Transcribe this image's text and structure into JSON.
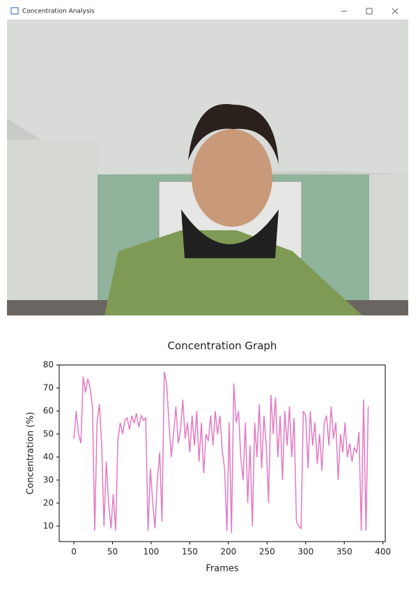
{
  "window": {
    "title": "Concentration Analysis"
  },
  "chart_data": {
    "type": "line",
    "title": "Concentration Graph",
    "x_label": "Frames",
    "y_label": "Concentration (%)",
    "x": [
      0,
      3,
      6,
      9,
      12,
      15,
      18,
      21,
      24,
      27,
      30,
      33,
      36,
      39,
      42,
      45,
      48,
      51,
      54,
      57,
      60,
      63,
      66,
      69,
      72,
      75,
      78,
      81,
      84,
      87,
      90,
      93,
      96,
      99,
      102,
      105,
      108,
      111,
      114,
      117,
      120,
      123,
      126,
      129,
      132,
      135,
      138,
      141,
      144,
      147,
      150,
      153,
      156,
      159,
      162,
      165,
      168,
      171,
      174,
      177,
      180,
      183,
      186,
      189,
      192,
      195,
      198,
      201,
      204,
      207,
      210,
      213,
      216,
      219,
      222,
      225,
      228,
      231,
      234,
      237,
      240,
      243,
      246,
      249,
      252,
      255,
      258,
      261,
      264,
      267,
      270,
      273,
      276,
      279,
      282,
      285,
      288,
      291,
      294,
      297,
      300,
      303,
      306,
      309,
      312,
      315,
      318,
      321,
      324,
      327,
      330,
      333,
      336,
      339,
      342,
      345,
      348,
      351,
      354,
      357,
      360,
      363,
      366,
      369,
      372,
      375,
      378,
      381
    ],
    "series": [
      {
        "name": "Concentration",
        "color": "#e377c2",
        "values": [
          48,
          60,
          50,
          46,
          75,
          68,
          74,
          70,
          62,
          8,
          55,
          63,
          45,
          10,
          38,
          20,
          9,
          24,
          8,
          48,
          55,
          50,
          56,
          57,
          52,
          58,
          55,
          59,
          53,
          58,
          56,
          57,
          8,
          35,
          20,
          9,
          30,
          42,
          12,
          77,
          72,
          55,
          40,
          50,
          62,
          46,
          52,
          65,
          48,
          55,
          42,
          58,
          45,
          60,
          38,
          55,
          33,
          50,
          47,
          58,
          45,
          60,
          50,
          58,
          43,
          35,
          8,
          55,
          7,
          72,
          55,
          60,
          40,
          30,
          55,
          20,
          45,
          10,
          55,
          40,
          63,
          35,
          58,
          45,
          20,
          67,
          50,
          66,
          40,
          58,
          30,
          60,
          45,
          62,
          40,
          57,
          12,
          10,
          9,
          60,
          58,
          35,
          60,
          45,
          55,
          37,
          50,
          34,
          55,
          58,
          45,
          62,
          48,
          55,
          30,
          50,
          42,
          55,
          40,
          46,
          38,
          44,
          42,
          51,
          8,
          65,
          8,
          62
        ]
      }
    ],
    "xlim": [
      -19,
      403
    ],
    "ylim": [
      3.3,
      80
    ],
    "xticks": [
      0,
      50,
      100,
      150,
      200,
      250,
      300,
      350,
      400
    ],
    "yticks": [
      10,
      20,
      30,
      40,
      50,
      60,
      70,
      80
    ]
  }
}
